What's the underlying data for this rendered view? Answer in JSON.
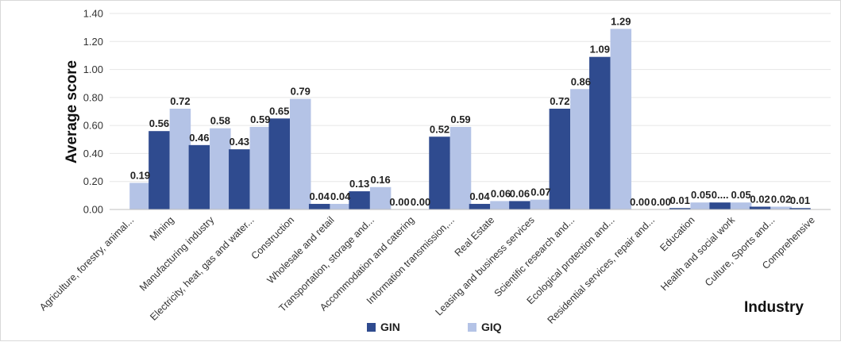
{
  "chart_data": {
    "type": "bar",
    "xlabel": "Industry",
    "ylabel": "Average score",
    "ylim": [
      0,
      1.4
    ],
    "yticks": [
      "0.00",
      "0.20",
      "0.40",
      "0.60",
      "0.80",
      "1.00",
      "1.20",
      "1.40"
    ],
    "grid": true,
    "legend_position": "bottom",
    "categories": [
      "Agriculture, forestry, animal...",
      "Mining",
      "Manufacturing industry",
      "Electricity, heat, gas and water...",
      "Construction",
      "Wholesale and retail",
      "Transportation, storage and...",
      "Accommodation and catering",
      "Information transmission,...",
      "Real Estate",
      "Leasing and business services",
      "Scientific research and...",
      "Ecological protection and...",
      "Residential services, repair and...",
      "Education",
      "Health and social work",
      "Culture, Sports and...",
      "Comprehensive"
    ],
    "series": [
      {
        "name": "GIN",
        "color": "#2f4b8f",
        "values": [
          null,
          0.56,
          0.46,
          0.43,
          0.65,
          0.04,
          0.13,
          0.0,
          0.52,
          0.04,
          0.06,
          0.72,
          1.09,
          0.0,
          0.01,
          0.05,
          0.02,
          0.01
        ],
        "labels": [
          "",
          "0.56",
          "0.46",
          "0.43",
          "0.65",
          "0.04",
          "0.13",
          "0.00",
          "0.52",
          "0.04",
          "0.06",
          "0.72",
          "1.09",
          "0.00",
          "0.01",
          "0....",
          "0.02",
          "0.01"
        ]
      },
      {
        "name": "GIQ",
        "color": "#b4c3e6",
        "values": [
          0.19,
          0.72,
          0.58,
          0.59,
          0.79,
          0.04,
          0.16,
          0.0,
          0.59,
          0.06,
          0.07,
          0.86,
          1.29,
          0.0,
          0.05,
          0.05,
          0.02,
          null
        ],
        "labels": [
          "0.19",
          "0.72",
          "0.58",
          "0.59",
          "0.79",
          "0.04",
          "0.16",
          "0.00",
          "0.59",
          "0.06",
          "0.07",
          "0.86",
          "1.29",
          "0.00",
          "0.05",
          "0.05",
          "0.02",
          ""
        ]
      }
    ]
  }
}
